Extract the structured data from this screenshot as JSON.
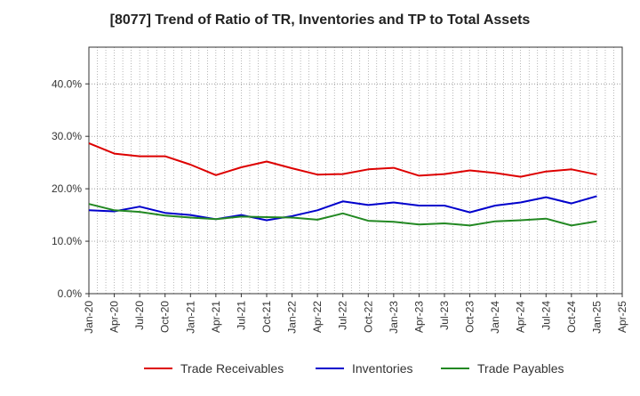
{
  "chart_data": {
    "type": "line",
    "title": "[8077]  Trend of Ratio of TR, Inventories and TP to Total Assets",
    "xlabel": "",
    "ylabel": "",
    "ylim": [
      0,
      47
    ],
    "y_ticks": [
      0,
      10,
      20,
      30,
      40
    ],
    "y_tick_labels": [
      "0.0%",
      "10.0%",
      "20.0%",
      "30.0%",
      "40.0%"
    ],
    "x_tick_labels": [
      "Jan-20",
      "Apr-20",
      "Jul-20",
      "Oct-20",
      "Jan-21",
      "Apr-21",
      "Jul-21",
      "Oct-21",
      "Jan-22",
      "Apr-22",
      "Jul-22",
      "Oct-22",
      "Jan-23",
      "Apr-23",
      "Jul-23",
      "Oct-23",
      "Jan-24",
      "Apr-24",
      "Jul-24",
      "Oct-24",
      "Jan-25",
      "Apr-25"
    ],
    "x": [
      "Jan-20",
      "Apr-20",
      "Jul-20",
      "Oct-20",
      "Jan-21",
      "Apr-21",
      "Jul-21",
      "Oct-21",
      "Jan-22",
      "Apr-22",
      "Jul-22",
      "Oct-22",
      "Jan-23",
      "Apr-23",
      "Jul-23",
      "Oct-23",
      "Jan-24",
      "Apr-24",
      "Jul-24",
      "Oct-24",
      "Jan-25"
    ],
    "grid": true,
    "legend_position": "bottom",
    "series": [
      {
        "name": "Trade Receivables",
        "color": "#dd0000",
        "values": [
          28.7,
          26.7,
          26.2,
          26.2,
          24.6,
          22.6,
          24.1,
          25.2,
          23.9,
          22.7,
          22.8,
          23.7,
          24.0,
          22.5,
          22.8,
          23.5,
          23.0,
          22.3,
          23.3,
          23.7,
          22.7
        ]
      },
      {
        "name": "Inventories",
        "color": "#0000cc",
        "values": [
          15.9,
          15.7,
          16.6,
          15.4,
          15.0,
          14.2,
          15.0,
          14.0,
          14.8,
          15.9,
          17.6,
          16.9,
          17.4,
          16.8,
          16.8,
          15.5,
          16.8,
          17.4,
          18.4,
          17.2,
          18.6
        ]
      },
      {
        "name": "Trade Payables",
        "color": "#228822",
        "values": [
          17.1,
          15.9,
          15.6,
          14.9,
          14.5,
          14.2,
          14.7,
          14.6,
          14.5,
          14.1,
          15.3,
          13.9,
          13.7,
          13.2,
          13.4,
          13.0,
          13.8,
          14.0,
          14.3,
          13.0,
          13.8
        ]
      }
    ]
  }
}
